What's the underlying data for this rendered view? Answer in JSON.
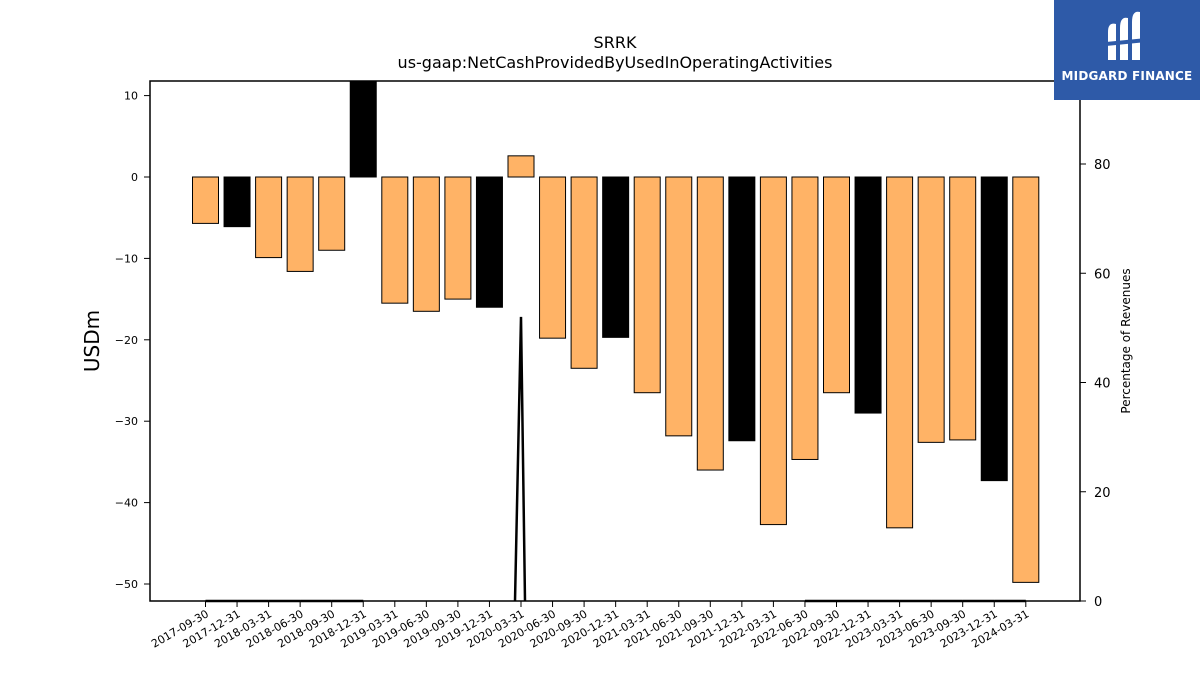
{
  "chart_data": {
    "type": "bar",
    "title": "SRRK",
    "subtitle": "us-gaap:NetCashProvidedByUsedInOperatingActivities",
    "ylabel": "USDm",
    "y2label": "Percentage of Revenues",
    "ylim": [
      -52,
      12
    ],
    "y2lim": [
      0,
      96
    ],
    "yticks": [
      10,
      0,
      -10,
      -20,
      -30,
      -40,
      -50
    ],
    "y2ticks": [
      80,
      60,
      40,
      20,
      0
    ],
    "categories": [
      "2017-09-30",
      "2017-12-31",
      "2018-03-31",
      "2018-06-30",
      "2018-09-30",
      "2018-12-31",
      "2019-03-31",
      "2019-06-30",
      "2019-09-30",
      "2019-12-31",
      "2020-03-31",
      "2020-06-30",
      "2020-09-30",
      "2020-12-31",
      "2021-03-31",
      "2021-06-30",
      "2021-09-30",
      "2021-12-31",
      "2022-03-31",
      "2022-06-30",
      "2022-09-30",
      "2022-12-31",
      "2023-03-31",
      "2023-06-30",
      "2023-09-30",
      "2023-12-31",
      "2024-03-31"
    ],
    "values": [
      -5.7,
      -6.1,
      -9.9,
      -11.6,
      -9.0,
      13.0,
      -15.5,
      -16.5,
      -15.0,
      -16.0,
      2.6,
      -19.8,
      -23.5,
      -19.7,
      -26.5,
      -31.8,
      -36.0,
      -32.4,
      -42.7,
      -34.7,
      -26.5,
      -29.0,
      -43.1,
      -32.6,
      -32.3,
      -37.3,
      -49.8
    ],
    "bar_types": [
      "q",
      "fy",
      "q",
      "q",
      "q",
      "fy",
      "q",
      "q",
      "q",
      "fy",
      "q",
      "q",
      "q",
      "fy",
      "q",
      "q",
      "q",
      "fy",
      "q",
      "q",
      "q",
      "fy",
      "q",
      "q",
      "q",
      "fy",
      "q"
    ],
    "line_series": {
      "name": "",
      "values": [
        0,
        0,
        0,
        0,
        0,
        0,
        null,
        null,
        null,
        0,
        52,
        0,
        null,
        null,
        null,
        null,
        null,
        null,
        null,
        0,
        0,
        0,
        0,
        0,
        0,
        0,
        0
      ]
    },
    "colors": {
      "quarter_bar": "#ffb366",
      "annual_bar": "#000000",
      "line": "#000000"
    },
    "legend": "none",
    "grid": false
  },
  "logo": {
    "text": "MIDGARD FINANCE",
    "icon": "midgard-logo-icon"
  }
}
